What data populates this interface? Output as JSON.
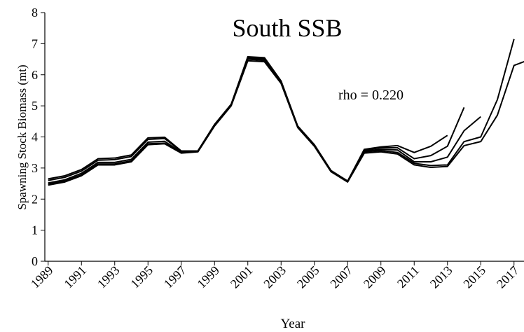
{
  "chart_data": {
    "type": "line",
    "title": "South SSB",
    "annotation": "rho = 0.220",
    "x_label": "Year",
    "y_label": "Spawning Stock Biomass (mt)",
    "x": [
      1989,
      1990,
      1991,
      1992,
      1993,
      1994,
      1995,
      1996,
      1997,
      1998,
      1999,
      2000,
      2001,
      2002,
      2003,
      2004,
      2005,
      2006,
      2007,
      2008,
      2009,
      2010,
      2011,
      2012,
      2013,
      2014,
      2015,
      2016,
      2017,
      2018
    ],
    "series": [
      {
        "color": "#000000",
        "values": [
          2.45,
          2.55,
          2.75,
          3.1,
          3.1,
          3.2,
          3.75,
          3.78,
          3.48,
          3.52,
          4.35,
          5.0,
          6.45,
          6.42,
          5.72,
          4.3,
          3.7,
          2.88,
          2.55,
          3.48,
          3.52,
          3.45,
          3.1,
          3.02,
          3.05,
          3.72,
          3.85,
          4.7,
          6.3,
          6.5
        ]
      },
      {
        "color": "#000000",
        "values": [
          2.48,
          2.58,
          2.78,
          3.13,
          3.13,
          3.23,
          3.78,
          3.8,
          3.5,
          3.53,
          4.37,
          5.02,
          6.5,
          6.46,
          5.75,
          4.32,
          3.72,
          2.9,
          2.56,
          3.52,
          3.56,
          3.5,
          3.15,
          3.08,
          3.1,
          3.85,
          4.0,
          5.2,
          7.15,
          null
        ]
      },
      {
        "color": "#000000",
        "values": [
          2.52,
          2.62,
          2.83,
          3.18,
          3.18,
          3.28,
          3.83,
          3.86,
          3.5,
          3.54,
          4.38,
          5.03,
          6.52,
          6.5,
          5.77,
          4.33,
          3.73,
          2.9,
          2.57,
          3.55,
          3.6,
          3.58,
          3.2,
          3.2,
          3.35,
          4.2,
          4.65,
          null,
          null,
          null
        ]
      },
      {
        "color": "#000000",
        "values": [
          2.6,
          2.7,
          2.9,
          3.25,
          3.27,
          3.37,
          3.92,
          3.95,
          3.53,
          3.55,
          4.4,
          5.05,
          6.55,
          6.52,
          5.78,
          4.34,
          3.74,
          2.91,
          2.58,
          3.58,
          3.65,
          3.65,
          3.3,
          3.4,
          3.7,
          4.95,
          null,
          null,
          null,
          null
        ]
      },
      {
        "color": "#000000",
        "values": [
          2.65,
          2.75,
          2.95,
          3.3,
          3.32,
          3.42,
          3.97,
          3.99,
          3.55,
          3.55,
          4.4,
          5.05,
          6.58,
          6.55,
          5.8,
          4.35,
          3.75,
          2.92,
          2.58,
          3.6,
          3.68,
          3.72,
          3.5,
          3.7,
          4.05,
          null,
          null,
          null,
          null,
          null
        ]
      }
    ],
    "xlim": [
      1988.8,
      2017.6
    ],
    "xticks": [
      1989,
      1991,
      1993,
      1995,
      1997,
      1999,
      2001,
      2003,
      2005,
      2007,
      2009,
      2011,
      2013,
      2015,
      2017
    ],
    "ylim": [
      0,
      8
    ],
    "yticks": [
      0,
      1,
      2,
      3,
      4,
      5,
      6,
      7,
      8
    ],
    "grid": false
  }
}
